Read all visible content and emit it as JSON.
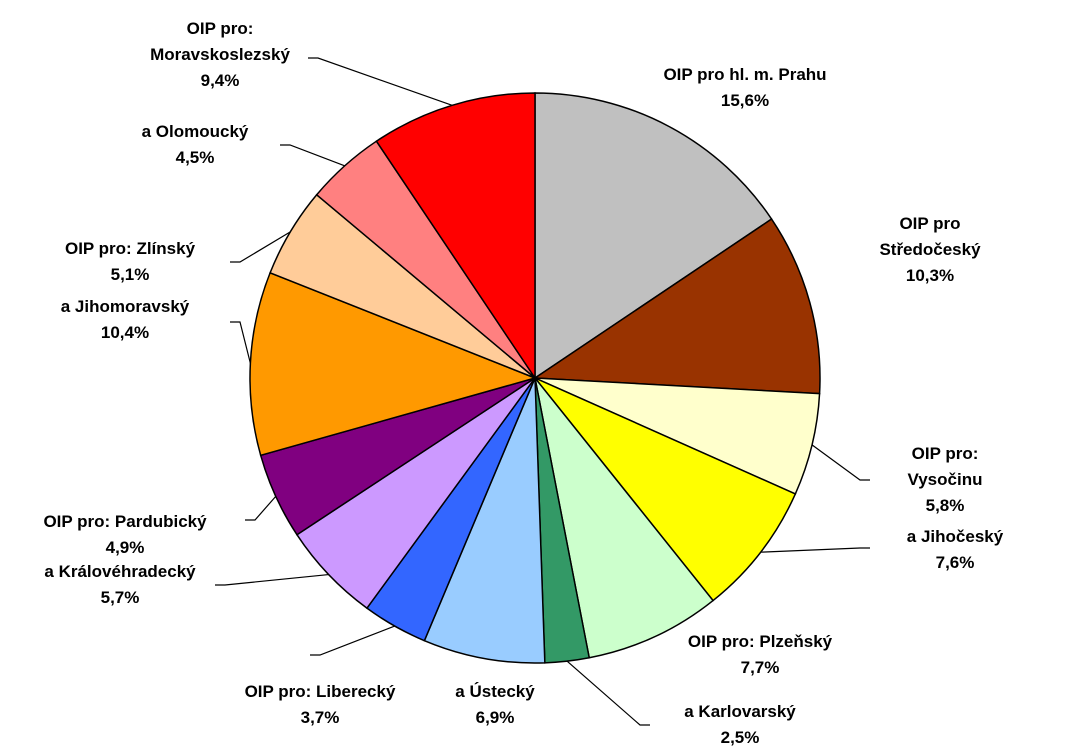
{
  "chart_data": {
    "type": "pie",
    "categories": [
      "OIP pro hl. m. Prahu",
      "OIP pro Středočeský",
      "OIP pro: Vysočinu",
      "a Jihočeský",
      "OIP pro: Plzeňský",
      "a Karlovarský",
      "a Ústecký",
      "OIP pro: Liberecký",
      "a Královéhradecký",
      "OIP pro: Pardubický",
      "a Jihomoravský",
      "OIP pro: Zlínský",
      "a Olomoucký",
      "OIP pro:\nMoravskoslezský"
    ],
    "values": [
      15.6,
      10.3,
      5.8,
      7.6,
      7.7,
      2.5,
      6.9,
      3.7,
      5.7,
      4.9,
      10.4,
      5.1,
      4.5,
      9.4
    ],
    "value_labels": [
      "15,6%",
      "10,3%",
      "5,8%",
      "7,6%",
      "7,7%",
      "2,5%",
      "6,9%",
      "3,7%",
      "5,7%",
      "4,9%",
      "10,4%",
      "5,1%",
      "4,5%",
      "9,4%"
    ],
    "colors": [
      "#c0c0c0",
      "#993300",
      "#ffffcc",
      "#ffff00",
      "#ccffcc",
      "#339966",
      "#99ccff",
      "#3366ff",
      "#cc99ff",
      "#800080",
      "#ff9900",
      "#ffcc99",
      "#ff8080",
      "#ff0000"
    ]
  }
}
